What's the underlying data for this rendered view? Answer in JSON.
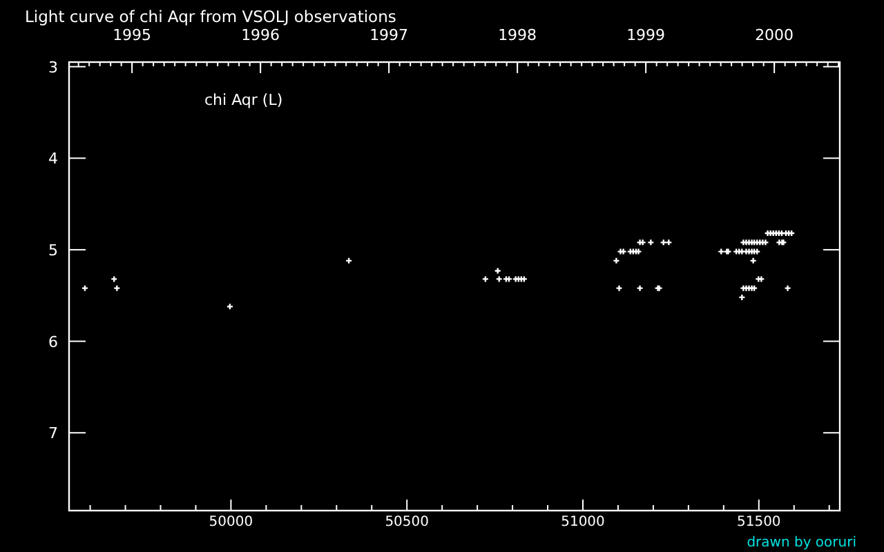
{
  "chart_data": {
    "type": "scatter",
    "title": "Light curve of chi Aqr from VSOLJ observations",
    "annotations": [
      "chi Aqr (L)",
      "drawn by ooruri"
    ],
    "x": [
      49585,
      49668,
      49676,
      49997,
      50335,
      50723,
      50762,
      50782,
      50790,
      50809,
      50817,
      50825,
      50833,
      50758,
      51095,
      51107,
      51115,
      51135,
      51143,
      51151,
      51158,
      51162,
      51170,
      51193,
      51229,
      51244,
      51103,
      51162,
      51213,
      51217,
      51393,
      51409,
      51413,
      51436,
      51444,
      51452,
      51464,
      51472,
      51480,
      51487,
      51495,
      51456,
      51464,
      51472,
      51480,
      51487,
      51495,
      51503,
      51511,
      51519,
      51558,
      51566,
      51570,
      51525,
      51533,
      51541,
      51549,
      51557,
      51565,
      51577,
      51585,
      51593,
      51484,
      51499,
      51507,
      51456,
      51464,
      51472,
      51480,
      51487,
      51582,
      51452
    ],
    "series": [
      {
        "color": "#ffffff",
        "values": [
          5.42,
          5.32,
          5.42,
          5.62,
          5.12,
          5.32,
          5.32,
          5.32,
          5.32,
          5.32,
          5.32,
          5.32,
          5.32,
          5.23,
          5.12,
          5.02,
          5.02,
          5.02,
          5.02,
          5.02,
          5.02,
          4.92,
          4.92,
          4.92,
          4.92,
          4.92,
          5.42,
          5.42,
          5.42,
          5.42,
          5.02,
          5.02,
          5.02,
          5.02,
          5.02,
          5.02,
          5.02,
          5.02,
          5.02,
          5.02,
          5.02,
          4.92,
          4.92,
          4.92,
          4.92,
          4.92,
          4.92,
          4.92,
          4.92,
          4.92,
          4.92,
          4.92,
          4.92,
          4.82,
          4.82,
          4.82,
          4.82,
          4.82,
          4.82,
          4.82,
          4.82,
          4.82,
          5.12,
          5.32,
          5.32,
          5.42,
          5.42,
          5.42,
          5.42,
          5.42,
          5.42,
          5.52
        ]
      }
    ],
    "xlim": [
      49540,
      51730
    ],
    "xticks": [
      {
        "value": 49600,
        "label": null
      },
      {
        "value": 49700,
        "label": null
      },
      {
        "value": 49800,
        "label": null
      },
      {
        "value": 49900,
        "label": null
      },
      50000,
      {
        "value": 50100,
        "label": null
      },
      {
        "value": 50200,
        "label": null
      },
      {
        "value": 50300,
        "label": null
      },
      {
        "value": 50400,
        "label": null
      },
      50500,
      {
        "value": 50600,
        "label": null
      },
      {
        "value": 50700,
        "label": null
      },
      {
        "value": 50800,
        "label": null
      },
      {
        "value": 50900,
        "label": null
      },
      51000,
      {
        "value": 51100,
        "label": null
      },
      {
        "value": 51200,
        "label": null
      },
      {
        "value": 51300,
        "label": null
      },
      {
        "value": 51400,
        "label": null
      },
      51500,
      {
        "value": 51600,
        "label": null
      },
      {
        "value": 51700,
        "label": null
      }
    ],
    "x2lim": [
      1994.51,
      2000.51
    ],
    "x2ticks": [
      1995,
      1996,
      1997,
      1998,
      1999,
      2000
    ],
    "ylim": [
      7.85,
      2.95
    ],
    "yticks": [
      3,
      4,
      5,
      6,
      7
    ],
    "marker": "cross",
    "grid": false
  }
}
